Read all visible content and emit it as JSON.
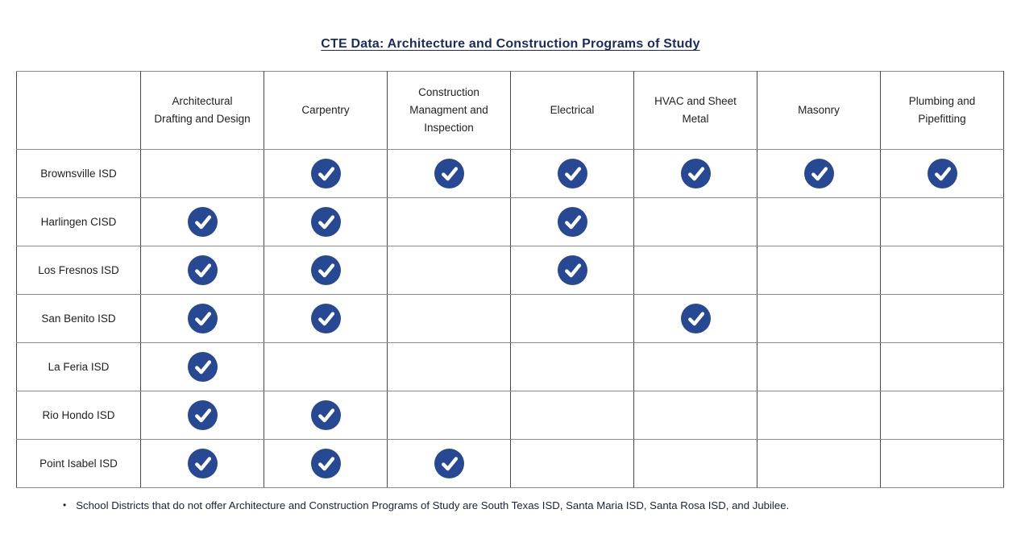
{
  "title": "CTE Data: Architecture and Construction Programs of Study",
  "table": {
    "columns": [
      "Architectural Drafting and Design",
      "Carpentry",
      "Construction Managment and Inspection",
      "Electrical",
      "HVAC and Sheet Metal",
      "Masonry",
      "Plumbing and Pipefitting"
    ],
    "rows": [
      {
        "district": "Brownsville ISD",
        "checks": [
          false,
          true,
          true,
          true,
          true,
          true,
          true
        ]
      },
      {
        "district": "Harlingen CISD",
        "checks": [
          true,
          true,
          false,
          true,
          false,
          false,
          false
        ]
      },
      {
        "district": "Los Fresnos ISD",
        "checks": [
          true,
          true,
          false,
          true,
          false,
          false,
          false
        ]
      },
      {
        "district": "San Benito ISD",
        "checks": [
          true,
          true,
          false,
          false,
          true,
          false,
          false
        ]
      },
      {
        "district": "La Feria ISD",
        "checks": [
          true,
          false,
          false,
          false,
          false,
          false,
          false
        ]
      },
      {
        "district": "Rio Hondo ISD",
        "checks": [
          true,
          true,
          false,
          false,
          false,
          false,
          false
        ]
      },
      {
        "district": "Point Isabel ISD",
        "checks": [
          true,
          true,
          true,
          false,
          false,
          false,
          false
        ]
      }
    ]
  },
  "footnote": {
    "bullet": "•",
    "text": "School Districts that do not offer Architecture and Construction Programs of Study are South Texas ISD, Santa Maria ISD, Santa Rosa ISD, and Jubilee."
  },
  "icons": {
    "check": "check-circle-icon"
  },
  "colors": {
    "title": "#1b2b5c",
    "text": "#1f1f1f",
    "footnote": "#1a2240",
    "border_h": "#8a8a8a",
    "border_v": "#474747",
    "check_circle": "#274893",
    "check_mark": "#ffffff"
  }
}
